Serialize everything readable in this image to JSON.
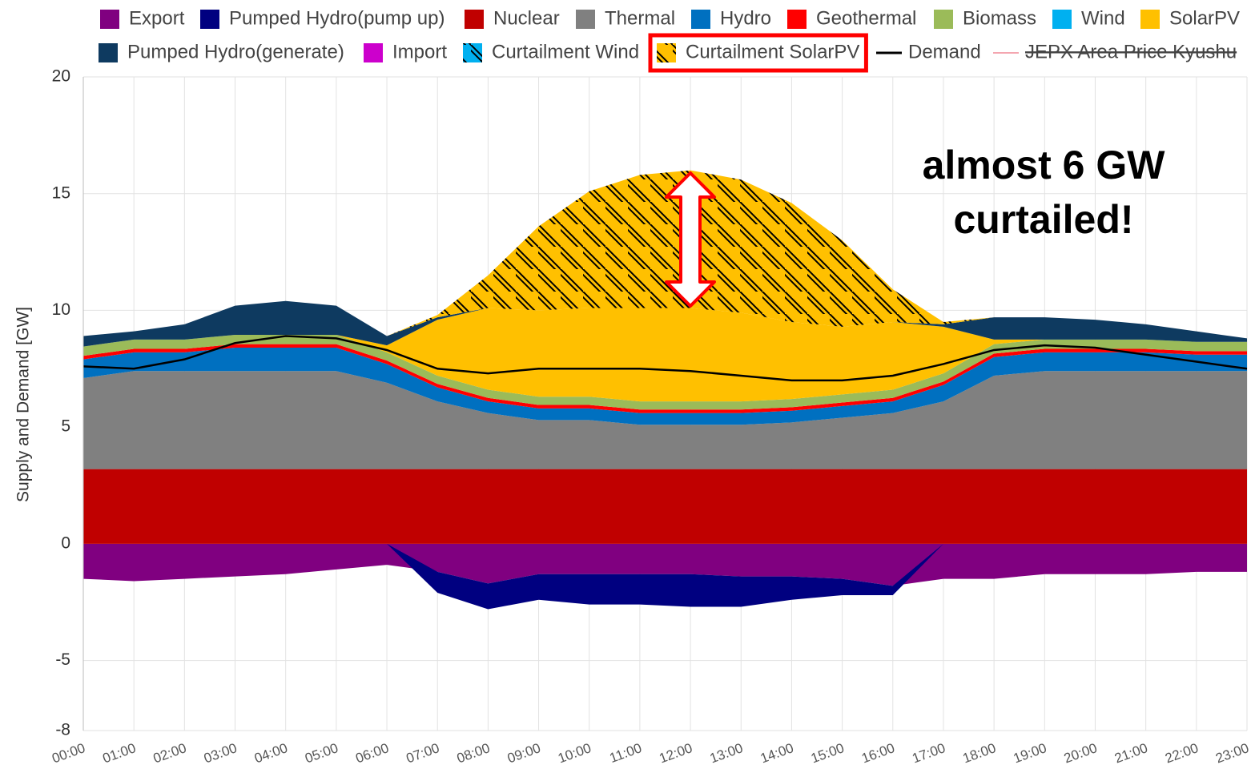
{
  "chart_data": {
    "type": "area",
    "stacked": true,
    "y_label": "Supply and Demand [GW]",
    "annotation": [
      "almost 6 GW",
      "curtailed!"
    ],
    "highlight": "Curtailment SolarPV",
    "categories": [
      "00:00",
      "01:00",
      "02:00",
      "03:00",
      "04:00",
      "05:00",
      "06:00",
      "07:00",
      "08:00",
      "09:00",
      "10:00",
      "11:00",
      "12:00",
      "13:00",
      "14:00",
      "15:00",
      "16:00",
      "17:00",
      "18:00",
      "19:00",
      "20:00",
      "21:00",
      "22:00",
      "23:00"
    ],
    "ylim": [
      -8,
      20
    ],
    "yticks": [
      -8,
      -5,
      0,
      5,
      10,
      15,
      20
    ],
    "grid": true,
    "series": [
      {
        "name": "Export",
        "color": "#800080",
        "values": [
          -1.5,
          -1.6,
          -1.5,
          -1.4,
          -1.3,
          -1.1,
          -0.9,
          -1.2,
          -1.7,
          -1.3,
          -1.3,
          -1.3,
          -1.3,
          -1.4,
          -1.4,
          -1.5,
          -1.8,
          -1.5,
          -1.5,
          -1.3,
          -1.3,
          -1.3,
          -1.2,
          -1.2
        ]
      },
      {
        "name": "Pumped Hydro(pump up)",
        "color": "#000080",
        "values": [
          0,
          0,
          0,
          0,
          0,
          0,
          0,
          -0.9,
          -1.1,
          -1.1,
          -1.3,
          -1.3,
          -1.4,
          -1.3,
          -1.0,
          -0.7,
          -0.4,
          0,
          0,
          0,
          0,
          0,
          0,
          0
        ]
      },
      {
        "name": "Nuclear",
        "color": "#c00000",
        "values": [
          3.2,
          3.2,
          3.2,
          3.2,
          3.2,
          3.2,
          3.2,
          3.2,
          3.2,
          3.2,
          3.2,
          3.2,
          3.2,
          3.2,
          3.2,
          3.2,
          3.2,
          3.2,
          3.2,
          3.2,
          3.2,
          3.2,
          3.2,
          3.2
        ]
      },
      {
        "name": "Thermal",
        "color": "#808080",
        "values": [
          3.9,
          4.2,
          4.2,
          4.2,
          4.2,
          4.2,
          3.7,
          2.9,
          2.4,
          2.1,
          2.1,
          1.9,
          1.9,
          1.9,
          2.0,
          2.2,
          2.4,
          2.9,
          4.0,
          4.2,
          4.2,
          4.2,
          4.2,
          4.2
        ]
      },
      {
        "name": "Hydro",
        "color": "#0070c0",
        "values": [
          0.8,
          0.8,
          0.8,
          1.0,
          1.0,
          1.0,
          0.8,
          0.6,
          0.5,
          0.5,
          0.5,
          0.5,
          0.5,
          0.5,
          0.5,
          0.5,
          0.5,
          0.7,
          0.8,
          0.8,
          0.8,
          0.8,
          0.7,
          0.7
        ]
      },
      {
        "name": "Geothermal",
        "color": "#ff0000",
        "values": [
          0.15,
          0.15,
          0.15,
          0.15,
          0.15,
          0.15,
          0.15,
          0.15,
          0.15,
          0.15,
          0.15,
          0.15,
          0.15,
          0.15,
          0.15,
          0.15,
          0.15,
          0.15,
          0.15,
          0.15,
          0.15,
          0.15,
          0.15,
          0.15
        ]
      },
      {
        "name": "Biomass",
        "color": "#9bbb59",
        "values": [
          0.4,
          0.4,
          0.4,
          0.4,
          0.4,
          0.4,
          0.35,
          0.35,
          0.35,
          0.35,
          0.35,
          0.35,
          0.35,
          0.35,
          0.35,
          0.35,
          0.35,
          0.35,
          0.4,
          0.4,
          0.4,
          0.4,
          0.4,
          0.4
        ]
      },
      {
        "name": "Wind",
        "color": "#00b0f0",
        "values": [
          0,
          0,
          0,
          0,
          0,
          0,
          0,
          0,
          0,
          0,
          0,
          0,
          0,
          0,
          0,
          0,
          0,
          0,
          0,
          0,
          0,
          0,
          0,
          0
        ]
      },
      {
        "name": "SolarPV",
        "color": "#ffc000",
        "values": [
          0,
          0,
          0,
          0,
          0,
          0,
          0.3,
          2.4,
          3.5,
          3.7,
          3.8,
          4.0,
          4.0,
          3.8,
          3.3,
          2.9,
          2.9,
          2.0,
          0.2,
          0,
          0,
          0,
          0,
          0
        ]
      },
      {
        "name": "Pumped Hydro(generate)",
        "color": "#0e3a60",
        "values": [
          0.45,
          0.35,
          0.65,
          1.25,
          1.45,
          1.25,
          0.4,
          0.1,
          0,
          0,
          0,
          0,
          0,
          0,
          0,
          0,
          0,
          0.1,
          0.95,
          0.95,
          0.85,
          0.65,
          0.45,
          0.15
        ]
      },
      {
        "name": "Import",
        "color": "#cc00cc",
        "values": [
          0,
          0,
          0,
          0,
          0,
          0,
          0,
          0,
          0,
          0,
          0,
          0,
          0,
          0,
          0,
          0,
          0,
          0,
          0,
          0,
          0,
          0,
          0,
          0
        ]
      },
      {
        "name": "Curtailment Wind",
        "color": "#00b0f0",
        "hatch": true,
        "values": [
          0,
          0,
          0,
          0,
          0,
          0,
          0,
          0,
          0,
          0,
          0,
          0,
          0,
          0,
          0,
          0,
          0,
          0,
          0,
          0,
          0,
          0,
          0,
          0
        ]
      },
      {
        "name": "Curtailment SolarPV",
        "color": "#ffc000",
        "hatch": true,
        "values": [
          0,
          0,
          0,
          0,
          0,
          0,
          0,
          0.1,
          1.4,
          3.6,
          5.0,
          5.7,
          5.9,
          5.7,
          5.1,
          3.7,
          1.4,
          0.1,
          0,
          0,
          0,
          0,
          0,
          0
        ]
      },
      {
        "name": "Demand",
        "color": "#000000",
        "type": "line",
        "values": [
          7.6,
          7.5,
          7.9,
          8.6,
          8.9,
          8.8,
          8.3,
          7.5,
          7.3,
          7.5,
          7.5,
          7.5,
          7.4,
          7.2,
          7.0,
          7.0,
          7.2,
          7.7,
          8.3,
          8.5,
          8.4,
          8.1,
          7.8,
          7.5
        ]
      }
    ],
    "hidden_series": [
      {
        "name": "JEPX Area Price Kyushu",
        "color": "#f4a6b0"
      }
    ]
  }
}
